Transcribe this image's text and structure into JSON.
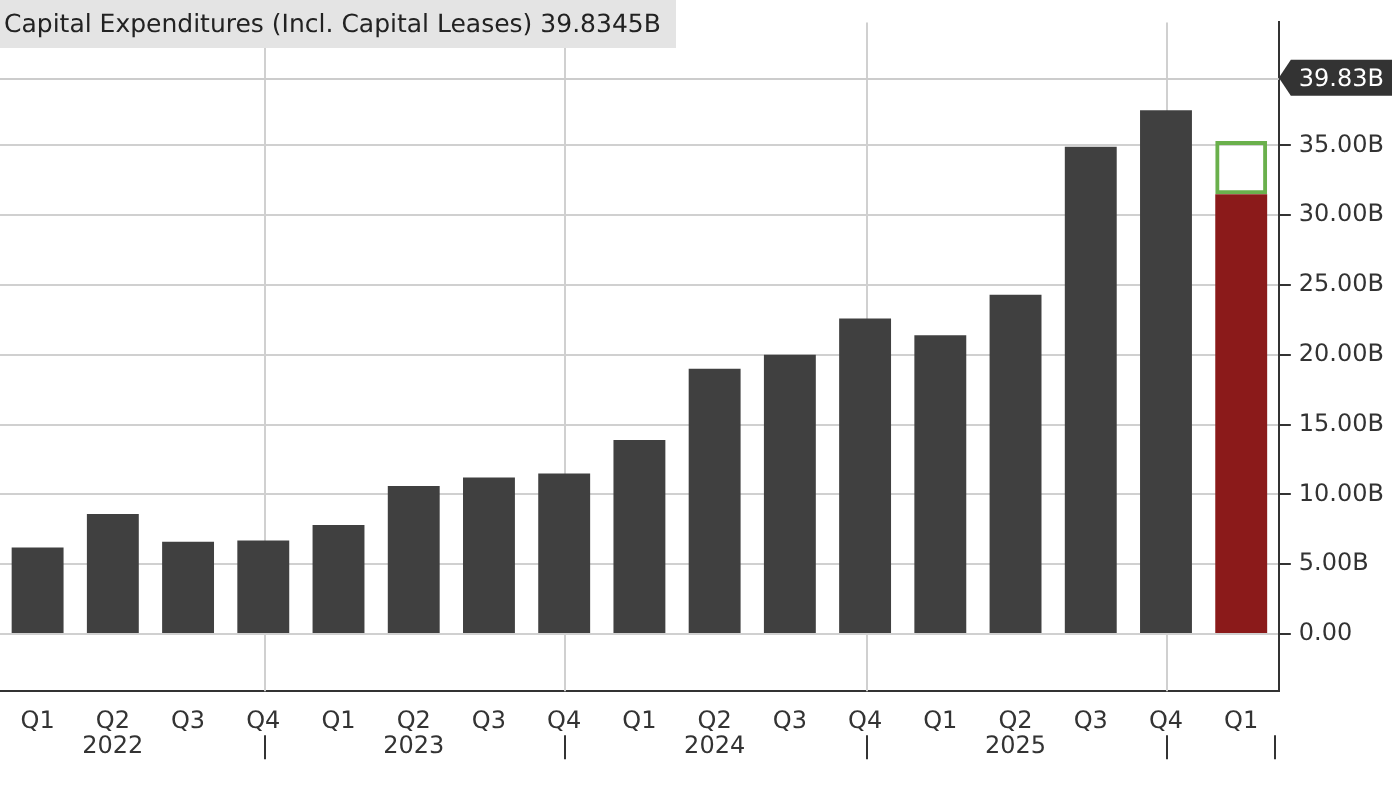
{
  "chart_data": {
    "type": "bar",
    "title": "Capital Expenditures (Incl. Capital Leases) 39.8345B",
    "categories": [
      "Q1",
      "Q2",
      "Q3",
      "Q4",
      "Q1",
      "Q2",
      "Q3",
      "Q4",
      "Q1",
      "Q2",
      "Q3",
      "Q4",
      "Q1",
      "Q2",
      "Q3",
      "Q4",
      "Q1"
    ],
    "annotations": [
      "2022",
      "2023",
      "2024",
      "2025"
    ],
    "stacked": true,
    "series": [
      {
        "colors": [
          "#404040",
          "#404040",
          "#404040",
          "#404040",
          "#404040",
          "#404040",
          "#404040",
          "#404040",
          "#404040",
          "#404040",
          "#404040",
          "#404040",
          "#404040",
          "#404040",
          "#404040",
          "#404040",
          "#8b1a1a"
        ],
        "values": [
          6.2,
          8.6,
          6.6,
          6.7,
          7.8,
          10.6,
          11.2,
          11.5,
          13.9,
          19.0,
          20.0,
          22.6,
          21.4,
          24.3,
          34.9,
          37.5,
          31.5
        ]
      },
      {
        "color": "#6ab04c",
        "values": [
          null,
          null,
          null,
          null,
          null,
          null,
          null,
          null,
          null,
          null,
          null,
          null,
          null,
          null,
          null,
          null,
          3.8
        ]
      }
    ],
    "ylim": [
      -4.1,
      43.8
    ],
    "yticks": [
      {
        "value": 0,
        "label": "0.00"
      },
      {
        "value": 5,
        "label": "5.00B"
      },
      {
        "value": 10,
        "label": "10.00B"
      },
      {
        "value": 15,
        "label": "15.00B"
      },
      {
        "value": 20,
        "label": "20.00B"
      },
      {
        "value": 25,
        "label": "25.00B"
      },
      {
        "value": 30,
        "label": "30.00B"
      },
      {
        "value": 35,
        "label": "35.00B"
      }
    ],
    "ref_lines": [
      {
        "axis": "y",
        "value": 39.83,
        "label": "39.83B",
        "color": "#cccccc"
      }
    ],
    "grid": true,
    "legend": false
  }
}
